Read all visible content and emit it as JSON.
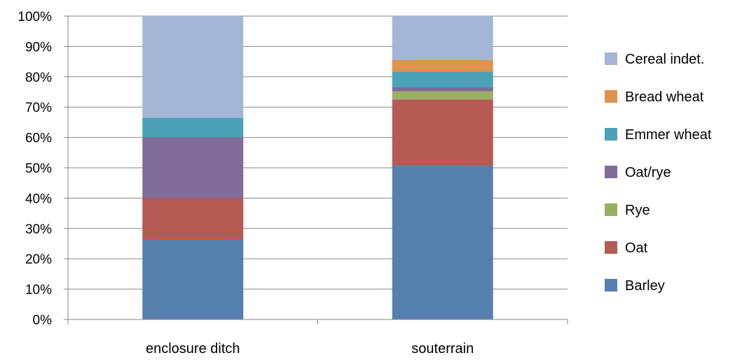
{
  "chart_data": {
    "type": "bar",
    "stacked": "percent",
    "categories": [
      "enclosure ditch",
      "souterrain"
    ],
    "series": [
      {
        "name": "Barley",
        "color": "#5580ae",
        "values": [
          26.5,
          50.7
        ]
      },
      {
        "name": "Oat",
        "color": "#b65a54",
        "values": [
          13.5,
          21.8
        ]
      },
      {
        "name": "Rye",
        "color": "#98b060",
        "values": [
          0,
          2.7
        ]
      },
      {
        "name": "Oat/rye",
        "color": "#806b9a",
        "values": [
          20.0,
          1.3
        ]
      },
      {
        "name": "Emmer wheat",
        "color": "#4aa1b8",
        "values": [
          6.5,
          5.2
        ]
      },
      {
        "name": "Bread wheat",
        "color": "#e0924f",
        "values": [
          0,
          3.8
        ]
      },
      {
        "name": "Cereal indet.",
        "color": "#a3b6d6",
        "values": [
          33.5,
          14.5
        ]
      }
    ],
    "ylim": [
      0,
      100
    ],
    "y_ticks": [
      "0%",
      "10%",
      "20%",
      "30%",
      "40%",
      "50%",
      "60%",
      "70%",
      "80%",
      "90%",
      "100%"
    ],
    "grid": true,
    "legend_position": "right"
  }
}
